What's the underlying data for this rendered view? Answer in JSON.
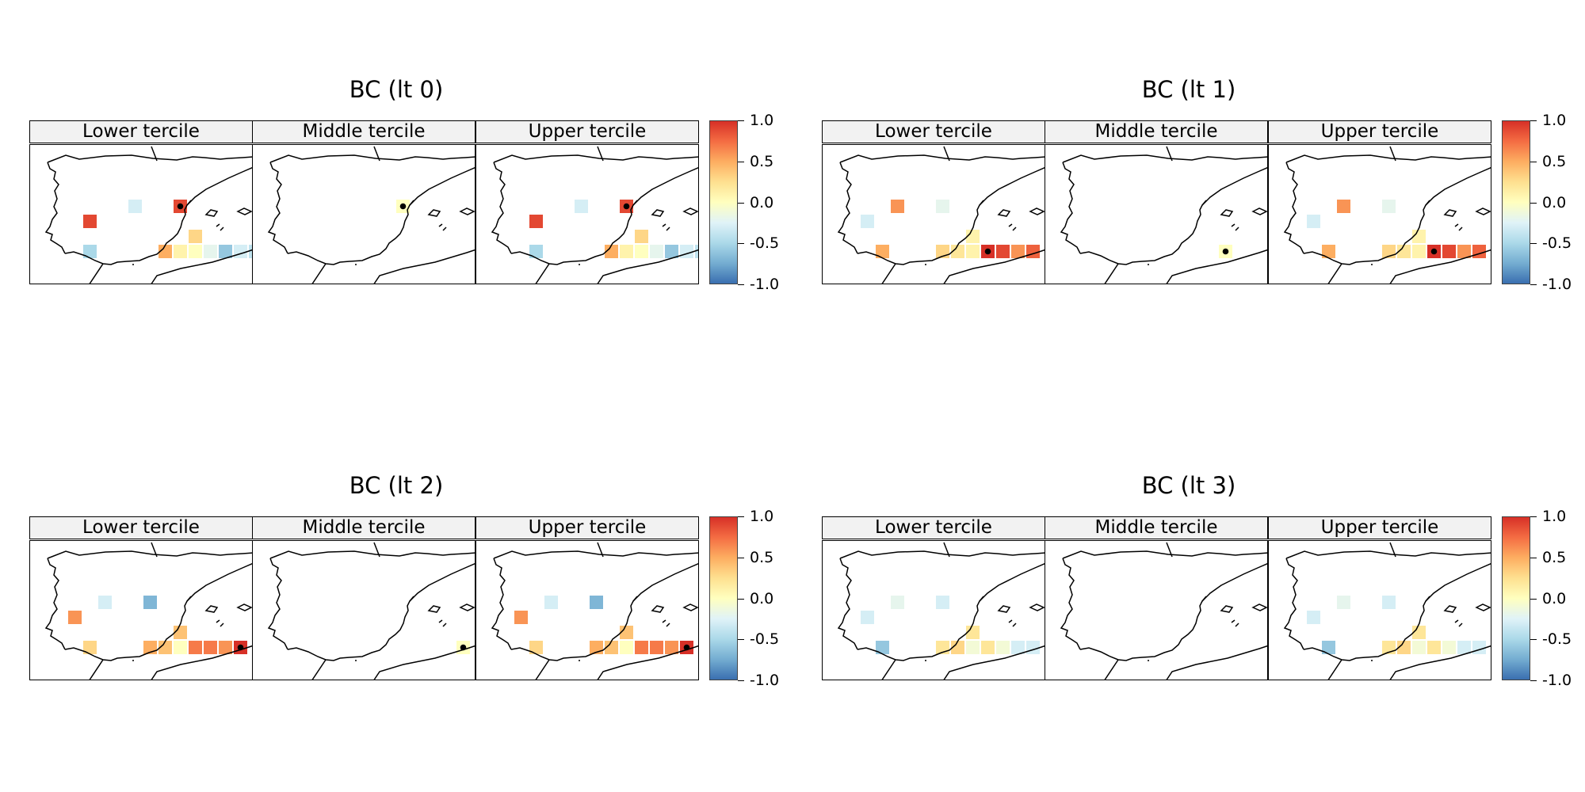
{
  "chart_data": [
    {
      "type": "heatmap",
      "title": "BC (lt 0)",
      "panels": [
        {
          "label": "Lower tercile",
          "cells": [
            {
              "col": 8,
              "row": 0,
              "value": -0.3
            },
            {
              "col": 5,
              "row": 1,
              "value": 0.9,
              "dot": false
            },
            {
              "col": 11,
              "row": 0,
              "value": 0.9,
              "dot": true
            },
            {
              "col": 5,
              "row": 3,
              "value": -0.5
            },
            {
              "col": 10,
              "row": 3,
              "value": 0.5
            },
            {
              "col": 11,
              "row": 3,
              "value": 0.1
            },
            {
              "col": 12,
              "row": 2,
              "value": 0.3
            },
            {
              "col": 12,
              "row": 3,
              "value": 0.0
            },
            {
              "col": 13,
              "row": 3,
              "value": -0.2
            },
            {
              "col": 14,
              "row": 3,
              "value": -0.6
            },
            {
              "col": 15,
              "row": 3,
              "value": -0.3
            },
            {
              "col": 16,
              "row": 3,
              "value": -0.4
            }
          ]
        },
        {
          "label": "Middle tercile",
          "cells": [
            {
              "col": 11,
              "row": 0,
              "value": 0.0,
              "dot": true
            }
          ]
        },
        {
          "label": "Upper tercile",
          "cells": [
            {
              "col": 8,
              "row": 0,
              "value": -0.3
            },
            {
              "col": 5,
              "row": 1,
              "value": 0.9
            },
            {
              "col": 11,
              "row": 0,
              "value": 0.9,
              "dot": true
            },
            {
              "col": 5,
              "row": 3,
              "value": -0.5
            },
            {
              "col": 10,
              "row": 3,
              "value": 0.5
            },
            {
              "col": 11,
              "row": 3,
              "value": 0.1
            },
            {
              "col": 12,
              "row": 2,
              "value": 0.3
            },
            {
              "col": 12,
              "row": 3,
              "value": 0.0
            },
            {
              "col": 13,
              "row": 3,
              "value": -0.2
            },
            {
              "col": 14,
              "row": 3,
              "value": -0.6
            },
            {
              "col": 15,
              "row": 3,
              "value": -0.3
            },
            {
              "col": 16,
              "row": 3,
              "value": -0.4
            }
          ]
        }
      ]
    },
    {
      "type": "heatmap",
      "title": "BC (lt 1)",
      "panels": [
        {
          "label": "Lower tercile",
          "cells": [
            {
              "col": 6,
              "row": 0,
              "value": 0.6
            },
            {
              "col": 9,
              "row": 0,
              "value": -0.2
            },
            {
              "col": 4,
              "row": 1,
              "value": -0.3
            },
            {
              "col": 5,
              "row": 3,
              "value": 0.5
            },
            {
              "col": 9,
              "row": 3,
              "value": 0.3
            },
            {
              "col": 10,
              "row": 3,
              "value": 0.2
            },
            {
              "col": 11,
              "row": 2,
              "value": 0.1
            },
            {
              "col": 11,
              "row": 3,
              "value": 0.1
            },
            {
              "col": 12,
              "row": 3,
              "value": 1.0,
              "dot": true
            },
            {
              "col": 13,
              "row": 3,
              "value": 0.9
            },
            {
              "col": 14,
              "row": 3,
              "value": 0.6
            },
            {
              "col": 15,
              "row": 3,
              "value": 0.8
            }
          ]
        },
        {
          "label": "Middle tercile",
          "cells": [
            {
              "col": 13,
              "row": 3,
              "value": 0.0,
              "dot": true
            }
          ]
        },
        {
          "label": "Upper tercile",
          "cells": [
            {
              "col": 6,
              "row": 0,
              "value": 0.6
            },
            {
              "col": 9,
              "row": 0,
              "value": -0.2
            },
            {
              "col": 4,
              "row": 1,
              "value": -0.3
            },
            {
              "col": 5,
              "row": 3,
              "value": 0.5
            },
            {
              "col": 9,
              "row": 3,
              "value": 0.3
            },
            {
              "col": 10,
              "row": 3,
              "value": 0.2
            },
            {
              "col": 11,
              "row": 2,
              "value": 0.1
            },
            {
              "col": 11,
              "row": 3,
              "value": 0.1
            },
            {
              "col": 12,
              "row": 3,
              "value": 1.0,
              "dot": true
            },
            {
              "col": 13,
              "row": 3,
              "value": 0.9
            },
            {
              "col": 14,
              "row": 3,
              "value": 0.6
            },
            {
              "col": 15,
              "row": 3,
              "value": 0.8
            }
          ]
        }
      ]
    },
    {
      "type": "heatmap",
      "title": "BC (lt 2)",
      "panels": [
        {
          "label": "Lower tercile",
          "cells": [
            {
              "col": 6,
              "row": 0,
              "value": -0.3
            },
            {
              "col": 9,
              "row": 0,
              "value": -0.7
            },
            {
              "col": 4,
              "row": 1,
              "value": 0.6
            },
            {
              "col": 5,
              "row": 3,
              "value": 0.3
            },
            {
              "col": 9,
              "row": 3,
              "value": 0.5
            },
            {
              "col": 10,
              "row": 3,
              "value": 0.4
            },
            {
              "col": 11,
              "row": 2,
              "value": 0.4
            },
            {
              "col": 11,
              "row": 3,
              "value": 0.0
            },
            {
              "col": 12,
              "row": 3,
              "value": 0.7
            },
            {
              "col": 13,
              "row": 3,
              "value": 0.7
            },
            {
              "col": 14,
              "row": 3,
              "value": 0.6
            },
            {
              "col": 15,
              "row": 3,
              "value": 1.0,
              "dot": true
            }
          ]
        },
        {
          "label": "Middle tercile",
          "cells": [
            {
              "col": 15,
              "row": 3,
              "value": 0.0,
              "dot": true
            }
          ]
        },
        {
          "label": "Upper tercile",
          "cells": [
            {
              "col": 6,
              "row": 0,
              "value": -0.3
            },
            {
              "col": 9,
              "row": 0,
              "value": -0.7
            },
            {
              "col": 4,
              "row": 1,
              "value": 0.6
            },
            {
              "col": 5,
              "row": 3,
              "value": 0.3
            },
            {
              "col": 9,
              "row": 3,
              "value": 0.5
            },
            {
              "col": 10,
              "row": 3,
              "value": 0.4
            },
            {
              "col": 11,
              "row": 2,
              "value": 0.4
            },
            {
              "col": 11,
              "row": 3,
              "value": 0.0
            },
            {
              "col": 12,
              "row": 3,
              "value": 0.7
            },
            {
              "col": 13,
              "row": 3,
              "value": 0.7
            },
            {
              "col": 14,
              "row": 3,
              "value": 0.6
            },
            {
              "col": 15,
              "row": 3,
              "value": 1.0,
              "dot": true
            }
          ]
        }
      ]
    },
    {
      "type": "heatmap",
      "title": "BC (lt 3)",
      "panels": [
        {
          "label": "Lower tercile",
          "cells": [
            {
              "col": 6,
              "row": 0,
              "value": -0.2
            },
            {
              "col": 9,
              "row": 0,
              "value": -0.3
            },
            {
              "col": 4,
              "row": 1,
              "value": -0.3
            },
            {
              "col": 5,
              "row": 3,
              "value": -0.6
            },
            {
              "col": 9,
              "row": 3,
              "value": 0.2
            },
            {
              "col": 10,
              "row": 3,
              "value": 0.3
            },
            {
              "col": 11,
              "row": 2,
              "value": 0.2
            },
            {
              "col": 11,
              "row": 3,
              "value": -0.1
            },
            {
              "col": 12,
              "row": 3,
              "value": 0.2
            },
            {
              "col": 13,
              "row": 3,
              "value": -0.1
            },
            {
              "col": 14,
              "row": 3,
              "value": -0.3
            },
            {
              "col": 15,
              "row": 3,
              "value": -0.3
            }
          ]
        },
        {
          "label": "Middle tercile",
          "cells": []
        },
        {
          "label": "Upper tercile",
          "cells": [
            {
              "col": 6,
              "row": 0,
              "value": -0.2
            },
            {
              "col": 9,
              "row": 0,
              "value": -0.3
            },
            {
              "col": 4,
              "row": 1,
              "value": -0.3
            },
            {
              "col": 5,
              "row": 3,
              "value": -0.6
            },
            {
              "col": 9,
              "row": 3,
              "value": 0.2
            },
            {
              "col": 10,
              "row": 3,
              "value": 0.3
            },
            {
              "col": 11,
              "row": 2,
              "value": 0.2
            },
            {
              "col": 11,
              "row": 3,
              "value": -0.1
            },
            {
              "col": 12,
              "row": 3,
              "value": 0.2
            },
            {
              "col": 13,
              "row": 3,
              "value": -0.1
            },
            {
              "col": 14,
              "row": 3,
              "value": -0.3
            },
            {
              "col": 15,
              "row": 3,
              "value": -0.3
            }
          ]
        }
      ]
    }
  ],
  "colorbar": {
    "ticks": [
      "1.0",
      "0.5",
      "0.0",
      "-0.5",
      "-1.0"
    ],
    "range": [
      -1.0,
      1.0
    ],
    "colors": [
      "#3a6fb0",
      "#74add1",
      "#abd9e9",
      "#e0f3f8",
      "#ffffbf",
      "#fee090",
      "#fdae61",
      "#f46d43",
      "#d73027"
    ]
  }
}
